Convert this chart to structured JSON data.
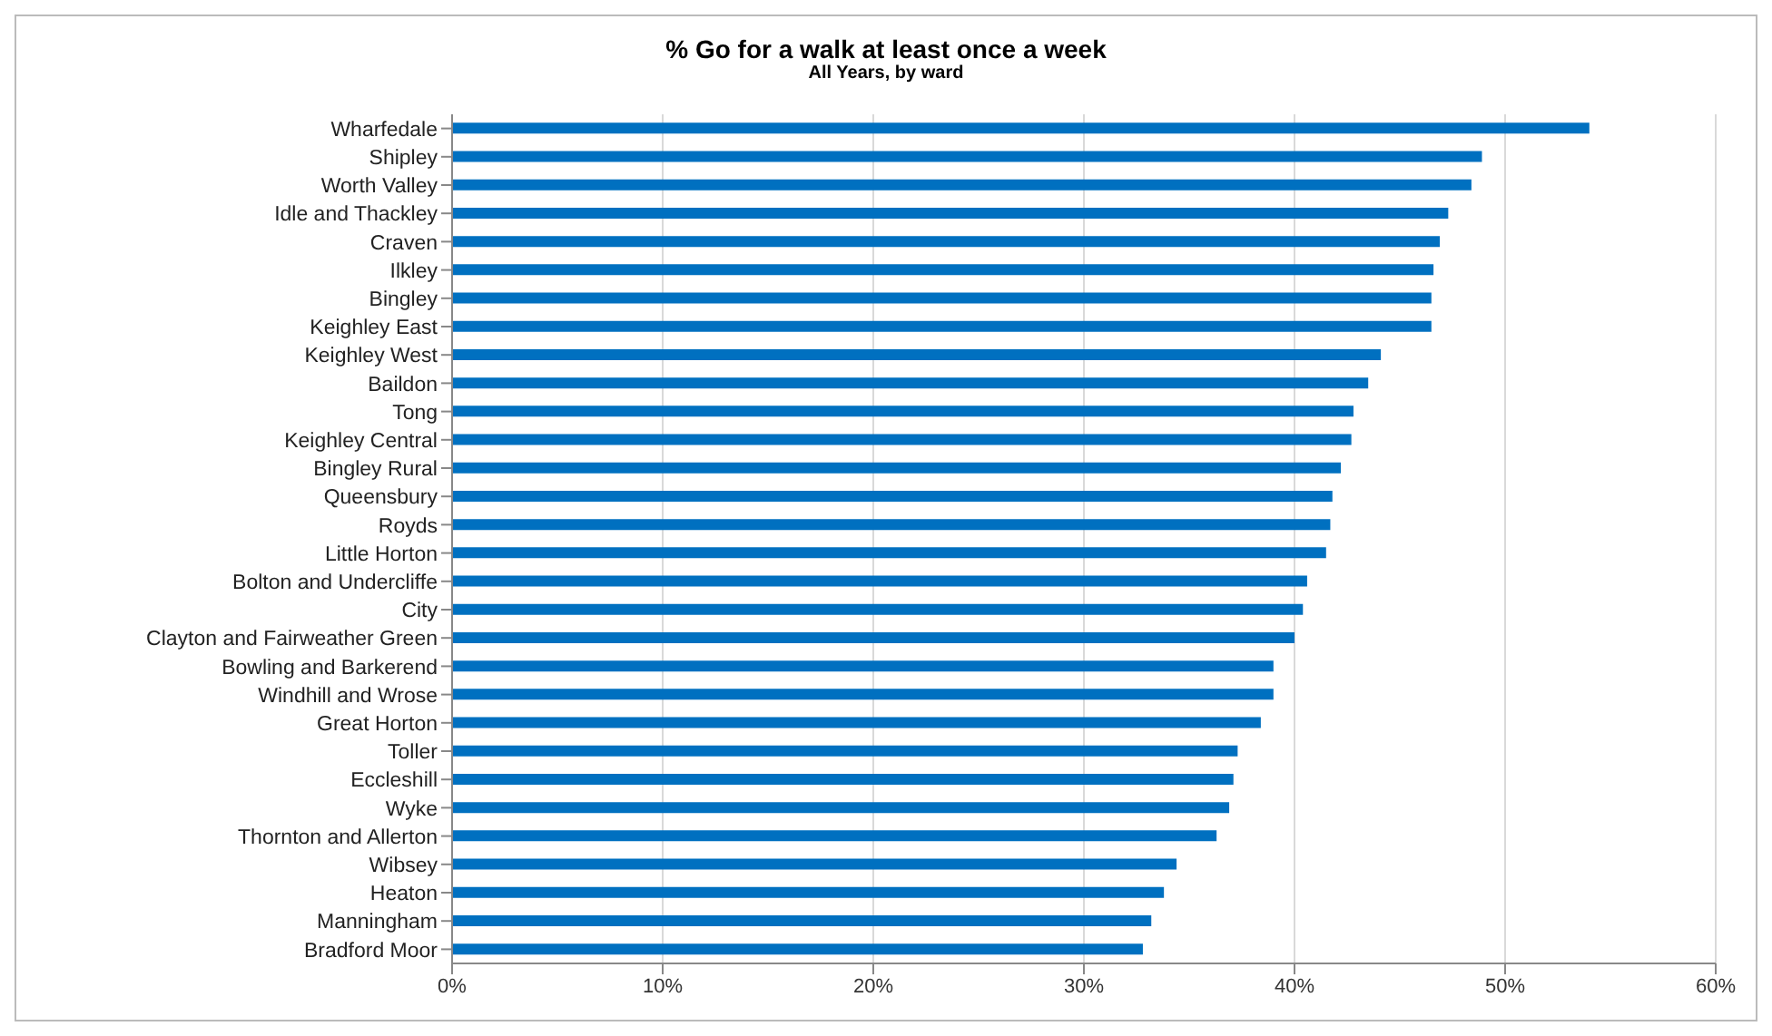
{
  "chart_data": {
    "type": "bar",
    "orientation": "horizontal",
    "title": "% Go for a walk at least once a week",
    "subtitle": "All Years, by ward",
    "categories": [
      "Wharfedale",
      "Shipley",
      "Worth Valley",
      "Idle and Thackley",
      "Craven",
      "Ilkley",
      "Bingley",
      "Keighley East",
      "Keighley West",
      "Baildon",
      "Tong",
      "Keighley Central",
      "Bingley Rural",
      "Queensbury",
      "Royds",
      "Little Horton",
      "Bolton and Undercliffe",
      "City",
      "Clayton and Fairweather Green",
      "Bowling and Barkerend",
      "Windhill and Wrose",
      "Great Horton",
      "Toller",
      "Eccleshill",
      "Wyke",
      "Thornton and Allerton",
      "Wibsey",
      "Heaton",
      "Manningham",
      "Bradford Moor"
    ],
    "values": [
      54.0,
      48.9,
      48.4,
      47.3,
      46.9,
      46.6,
      46.5,
      46.5,
      44.1,
      43.5,
      42.8,
      42.7,
      42.2,
      41.8,
      41.7,
      41.5,
      40.6,
      40.4,
      40.0,
      39.0,
      39.0,
      38.4,
      37.3,
      37.1,
      36.9,
      36.3,
      34.4,
      33.8,
      33.2,
      32.8
    ],
    "color": "#0070c0",
    "xlim": [
      0,
      60
    ],
    "xticks": [
      {
        "value": 0,
        "label": "0%"
      },
      {
        "value": 10,
        "label": "10%"
      },
      {
        "value": 20,
        "label": "20%"
      },
      {
        "value": 30,
        "label": "30%"
      },
      {
        "value": 40,
        "label": "40%"
      },
      {
        "value": 50,
        "label": "50%"
      },
      {
        "value": 60,
        "label": "60%"
      }
    ],
    "grid": "x"
  }
}
